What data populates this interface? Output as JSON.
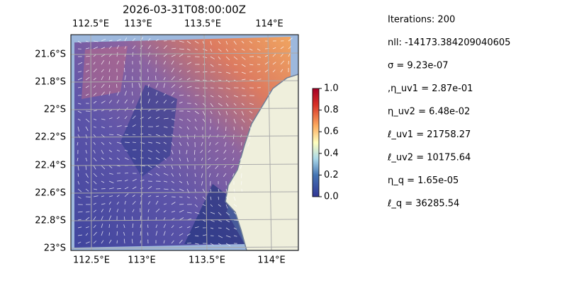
{
  "map": {
    "title": "2026-03-31T08:00:00Z",
    "lon_labels": [
      "112.5°E",
      "113°E",
      "113.5°E",
      "114°E"
    ],
    "lat_labels": [
      "21.6°S",
      "21.8°S",
      "22°S",
      "22.2°S",
      "22.4°S",
      "22.6°S",
      "22.8°S",
      "23°S"
    ],
    "colorbar": {
      "range": [
        0,
        1
      ],
      "ticks": [
        {
          "value": 0,
          "label": "0.0"
        },
        0.2,
        0.4,
        0.6,
        0.8,
        {
          "value": 1,
          "label": "1.0"
        }
      ]
    }
  },
  "info": [
    "Iterations: 200",
    "nll: -14173.384209040605",
    "σ = 9.23e-07",
    ",η_uv1 = 2.87e-01",
    "η_uv2 = 6.48e-02",
    "ℓ_uv1 = 21758.27",
    "ℓ_uv2 = 10175.64",
    "η_q = 1.65e-05",
    "ℓ_q = 36285.54"
  ]
}
